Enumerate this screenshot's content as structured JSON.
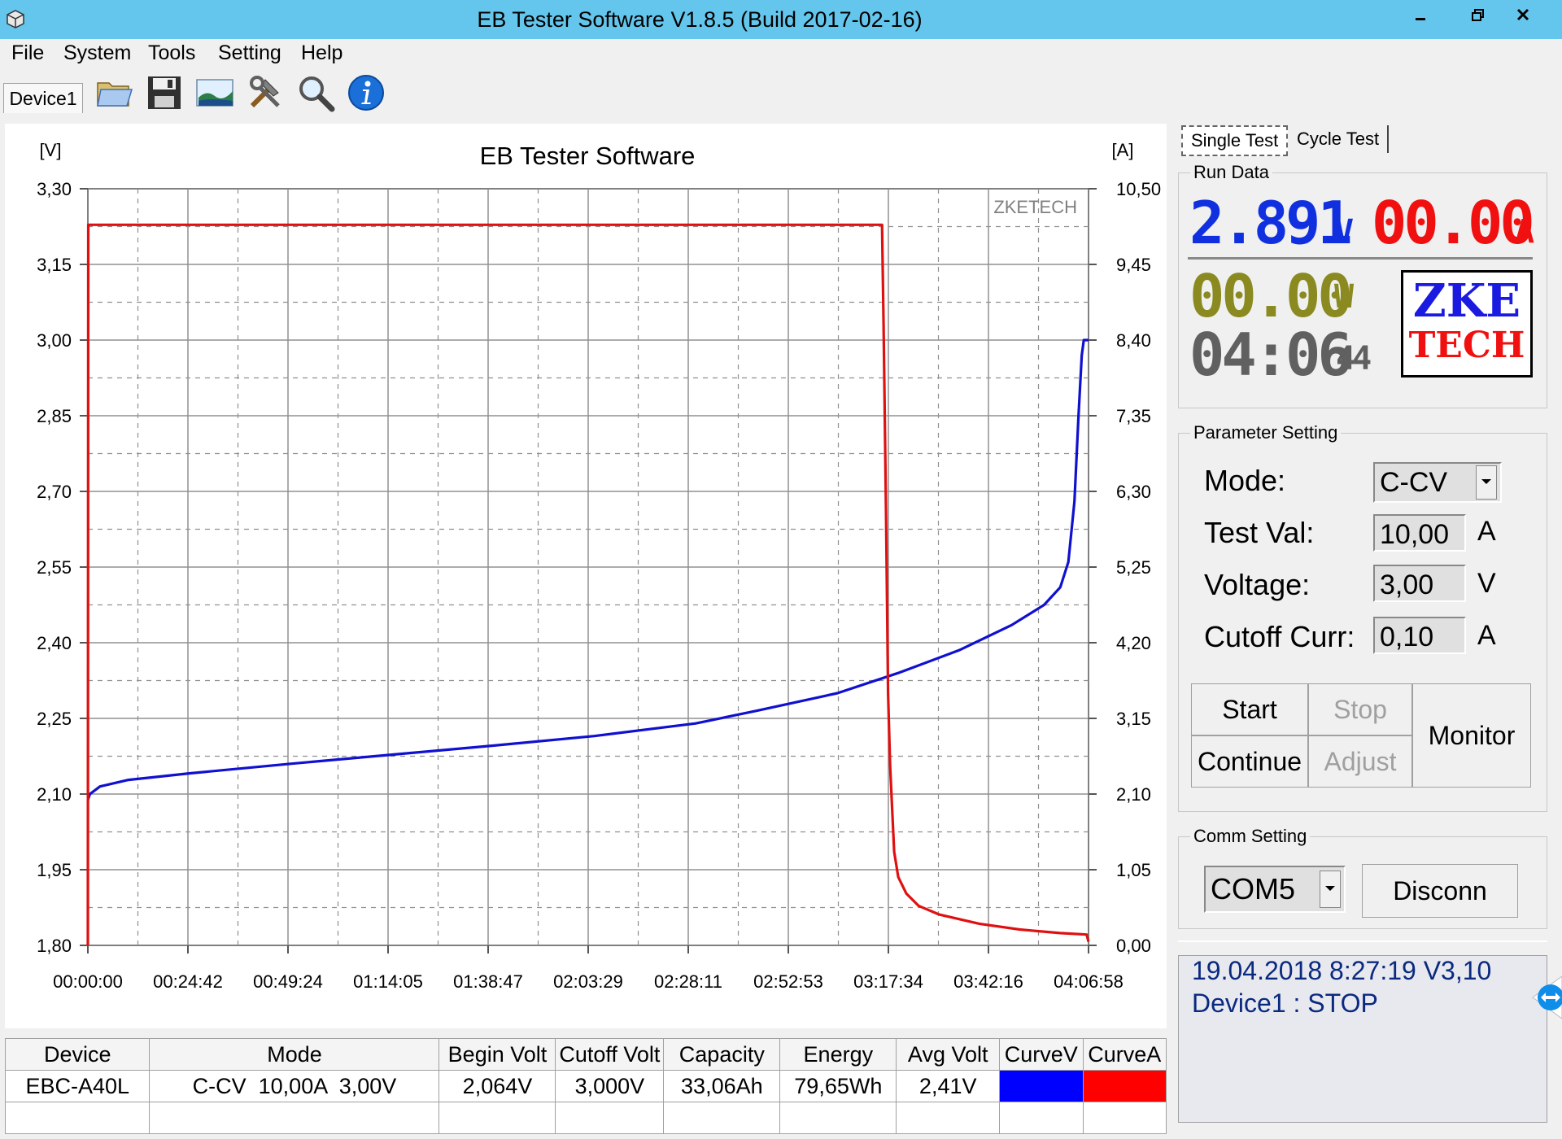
{
  "window": {
    "title": "EB Tester Software V1.8.5 (Build 2017-02-16)"
  },
  "menu": [
    "File",
    "System",
    "Tools",
    "Setting",
    "Help"
  ],
  "toolbar": {
    "device_tab": "Device1",
    "icons": [
      "folder-open-icon",
      "save-icon",
      "chart-image-icon",
      "tools-icon",
      "search-icon",
      "info-icon"
    ]
  },
  "chart": {
    "watermark": "ZKETECH"
  },
  "chart_data": {
    "type": "line",
    "title": "EB Tester Software",
    "y_left_label": "[V]",
    "y_right_label": "[A]",
    "y_left_range": [
      1.8,
      3.3
    ],
    "y_right_range": [
      0.0,
      10.5
    ],
    "y_left_ticks": [
      "3,30",
      "3,15",
      "3,00",
      "2,85",
      "2,70",
      "2,55",
      "2,40",
      "2,25",
      "2,10",
      "1,95",
      "1,80"
    ],
    "y_right_ticks": [
      "10,50",
      "9,45",
      "8,40",
      "7,35",
      "6,30",
      "5,25",
      "4,20",
      "3,15",
      "2,10",
      "1,05",
      "0,00"
    ],
    "x_ticks": [
      "00:00:00",
      "00:24:42",
      "00:49:24",
      "01:14:05",
      "01:38:47",
      "02:03:29",
      "02:28:11",
      "02:52:53",
      "03:17:34",
      "03:42:16",
      "04:06:58"
    ],
    "x_range_minutes": [
      0,
      246.97
    ],
    "grid": true,
    "series": [
      {
        "axis": "left",
        "color": "#1010d0",
        "points": [
          [
            0,
            2.088
          ],
          [
            0.5,
            2.1
          ],
          [
            3,
            2.115
          ],
          [
            10,
            2.128
          ],
          [
            25,
            2.141
          ],
          [
            50,
            2.16
          ],
          [
            75,
            2.178
          ],
          [
            100,
            2.196
          ],
          [
            125,
            2.215
          ],
          [
            150,
            2.24
          ],
          [
            165,
            2.265
          ],
          [
            185,
            2.3
          ],
          [
            200,
            2.34
          ],
          [
            215,
            2.385
          ],
          [
            228,
            2.435
          ],
          [
            236,
            2.475
          ],
          [
            240,
            2.51
          ],
          [
            242,
            2.56
          ],
          [
            243.5,
            2.68
          ],
          [
            244.5,
            2.85
          ],
          [
            245.3,
            2.97
          ],
          [
            245.8,
            3.0
          ],
          [
            246.97,
            3.0
          ]
        ]
      },
      {
        "axis": "right",
        "color": "#e01010",
        "points": [
          [
            0,
            0.0
          ],
          [
            0.1,
            10.0
          ],
          [
            196.0,
            10.0
          ],
          [
            196.4,
            8.6
          ],
          [
            197.0,
            6.0
          ],
          [
            197.5,
            3.5
          ],
          [
            198,
            2.5
          ],
          [
            199,
            1.3
          ],
          [
            200,
            0.95
          ],
          [
            202,
            0.72
          ],
          [
            205,
            0.55
          ],
          [
            210,
            0.43
          ],
          [
            220,
            0.3
          ],
          [
            230,
            0.22
          ],
          [
            240,
            0.17
          ],
          [
            246.5,
            0.15
          ],
          [
            246.97,
            0.05
          ]
        ]
      }
    ]
  },
  "tabs": {
    "single": "Single Test",
    "cycle": "Cycle Test"
  },
  "run_data": {
    "label": "Run Data",
    "voltage": "2.891",
    "voltage_unit": "V",
    "current": "00.00",
    "current_unit": "A",
    "power": "00.00",
    "power_unit": "W",
    "time": "04:06",
    "seconds": "44",
    "logo_line1": "ZKE",
    "logo_line2": "TECH"
  },
  "params": {
    "label": "Parameter Setting",
    "mode_label": "Mode:",
    "mode_value": "C-CV",
    "testval_label": "Test Val:",
    "testval_value": "10,00",
    "testval_unit": "A",
    "voltage_label": "Voltage:",
    "voltage_value": "3,00",
    "voltage_unit": "V",
    "cutoff_label": "Cutoff Curr:",
    "cutoff_value": "0,10",
    "cutoff_unit": "A"
  },
  "buttons": {
    "start": "Start",
    "stop": "Stop",
    "continue": "Continue",
    "adjust": "Adjust",
    "monitor": "Monitor"
  },
  "comm": {
    "label": "Comm Setting",
    "port": "COM5",
    "disconnect": "Disconn"
  },
  "status": {
    "line1": "19.04.2018 8:27:19  V3,10",
    "line2": "Device1 : STOP"
  },
  "table": {
    "headers": [
      "Device",
      "Mode",
      "Begin Volt",
      "Cutoff Volt",
      "Capacity",
      "Energy",
      "Avg Volt",
      "CurveV",
      "CurveA"
    ],
    "row": [
      "EBC-A40L",
      "C-CV  10,00A  3,00V",
      "2,064V",
      "3,000V",
      "33,06Ah",
      "79,65Wh",
      "2,41V"
    ],
    "curve_v_color": "#0000ff",
    "curve_a_color": "#ff0000"
  }
}
